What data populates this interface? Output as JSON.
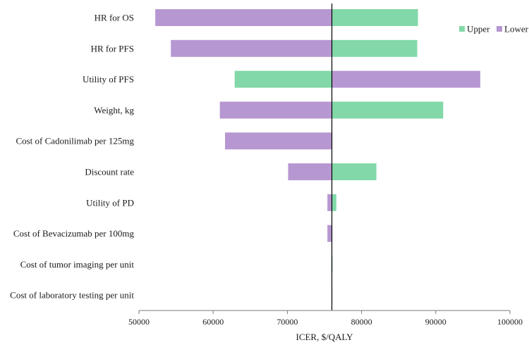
{
  "chart_data": {
    "type": "bar",
    "orientation": "horizontal",
    "subtype": "tornado",
    "title": "",
    "xlabel": "ICER, $/QALY",
    "ylabel": "",
    "xlim": [
      50000,
      100000
    ],
    "xticks": [
      50000,
      60000,
      70000,
      80000,
      90000,
      100000
    ],
    "base_value": 76000,
    "categories": [
      "HR for OS",
      "HR for PFS",
      "Utility of PFS",
      "Weight, kg",
      "Cost of Cadonilimab per 125mg",
      "Discount rate",
      "Utility of PD",
      "Cost of Bevacizumab per 100mg",
      "Cost of tumor imaging per unit",
      "Cost of laboratory testing per unit"
    ],
    "series": [
      {
        "name": "Upper",
        "color": "#82d8a8",
        "values": [
          87600,
          87500,
          62900,
          91000,
          76000,
          82000,
          76600,
          76000,
          76080,
          76020
        ]
      },
      {
        "name": "Lower",
        "color": "#b797d1",
        "values": [
          52200,
          54300,
          96000,
          60900,
          61600,
          70100,
          75400,
          75400,
          75930,
          75990
        ]
      }
    ],
    "legend": {
      "position": "top-right",
      "entries": [
        "Upper",
        "Lower"
      ]
    },
    "grid": false
  }
}
